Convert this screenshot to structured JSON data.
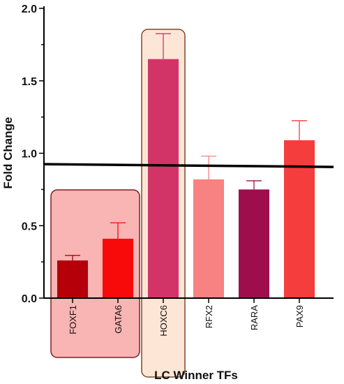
{
  "chart_data": {
    "type": "bar",
    "title": "",
    "xlabel": "LC Winner TFs",
    "ylabel": "Fold Change",
    "ylim": [
      0,
      2.0
    ],
    "yticks": [
      "0.0",
      "0.5",
      "1.0",
      "1.5",
      "2.0"
    ],
    "ytick_values": [
      0,
      0.5,
      1.0,
      1.5,
      2.0
    ],
    "grid": false,
    "categories": [
      "FOXF1",
      "GATA6",
      "HOXC6",
      "RFX2",
      "RARA",
      "PAX9"
    ],
    "values": [
      0.26,
      0.41,
      1.65,
      0.82,
      0.75,
      1.09
    ],
    "errors": [
      0.035,
      0.11,
      0.175,
      0.16,
      0.06,
      0.135
    ],
    "bar_colors": [
      "#b5000a",
      "#f90a0a",
      "#d33467",
      "#f88282",
      "#9e0e4c",
      "#f53d3d"
    ],
    "reference_line": 0.92,
    "highlight_boxes": [
      {
        "categories": [
          "FOXF1",
          "GATA6"
        ],
        "fill": "#f9b4b4",
        "stroke": "#7a1e1e"
      },
      {
        "categories": [
          "HOXC6"
        ],
        "fill": "#fde6d6",
        "stroke": "#7a4a2a"
      }
    ]
  }
}
